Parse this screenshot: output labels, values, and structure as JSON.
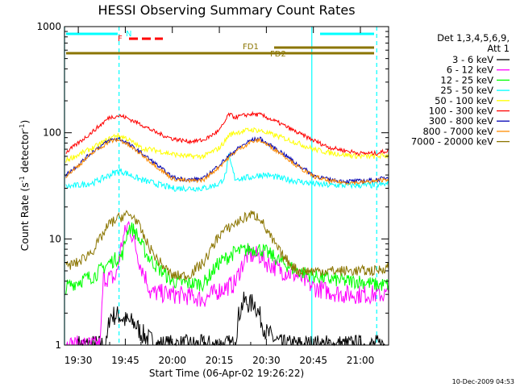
{
  "chart_data": {
    "type": "line",
    "title": "HESSI Observing Summary Count Rates",
    "xlabel": "Start Time (06-Apr-02 19:26:22)",
    "ylabel": "Count Rate (s",
    "ylabel_sup1": "-1",
    "ylabel_mid": " detector",
    "ylabel_sup2": "-1",
    "ylabel_end": ")",
    "yscale": "log",
    "ylim": [
      1,
      1000
    ],
    "xlim": [
      -4.4,
      99
    ],
    "x_ticks": [
      0,
      15,
      30,
      45,
      60,
      75,
      90
    ],
    "x_tick_labels": [
      "19:30",
      "19:45",
      "20:00",
      "20:15",
      "20:30",
      "20:45",
      "21:00"
    ],
    "y_ticks": [
      1,
      10,
      100,
      1000
    ],
    "y_tick_labels": [
      "1",
      "10",
      "100",
      "1000"
    ],
    "legend_header": [
      "Det 1,3,4,5,6,9,",
      "Att 1"
    ],
    "legend_placement": "right",
    "footer_date": "10-Dec-2009 04:53",
    "flag_labels": [
      {
        "text": "N",
        "color": "#00ffff"
      },
      {
        "text": "F",
        "color": "#ff0000"
      },
      {
        "text": "FD1",
        "color": "#8b7500"
      },
      {
        "text": "FD2",
        "color": "#8b7500"
      }
    ],
    "vertical_markers": [
      {
        "x": -4.4,
        "style": "solid",
        "color": "#00ffff"
      },
      {
        "x": 13.0,
        "style": "dashed",
        "color": "#00ffff"
      },
      {
        "x": 74.5,
        "style": "solid",
        "color": "#00ffff"
      },
      {
        "x": 95.2,
        "style": "dashed",
        "color": "#00ffff"
      }
    ],
    "series": [
      {
        "name": "3 - 6 keV",
        "color": "#000000",
        "x": [
          0,
          9,
          10,
          13,
          15,
          18,
          20,
          25,
          30,
          35,
          40,
          45,
          48,
          50,
          51,
          52,
          53,
          55,
          56,
          60,
          65,
          70,
          75,
          80,
          90,
          99
        ],
        "values": [
          1,
          1,
          1.9,
          1.9,
          1.7,
          1.6,
          1.3,
          1,
          1,
          1,
          1,
          1,
          1,
          1,
          1.8,
          2.3,
          2.6,
          2.4,
          2.6,
          1.3,
          1,
          1,
          1,
          1,
          1,
          1
        ]
      },
      {
        "name": "6 - 12 keV",
        "color": "#ff00ff",
        "x": [
          -4,
          0,
          7,
          8,
          12,
          14,
          16,
          18,
          20,
          22,
          23,
          25,
          30,
          35,
          40,
          45,
          50,
          52,
          54,
          56,
          58,
          60,
          65,
          70,
          75,
          80,
          85,
          90,
          99
        ],
        "values": [
          1,
          1,
          1,
          4.3,
          4.3,
          9.5,
          14,
          9,
          5.5,
          4,
          3.1,
          3.1,
          3,
          2.9,
          2.7,
          3.3,
          3.8,
          5.5,
          7,
          7,
          7,
          6,
          5,
          4.5,
          3.5,
          3.2,
          3,
          3,
          3
        ]
      },
      {
        "name": "12 - 25 keV",
        "color": "#00ff00",
        "x": [
          -4,
          0,
          5,
          10,
          14,
          16,
          18,
          20,
          22,
          25,
          30,
          35,
          40,
          45,
          50,
          55,
          58,
          60,
          65,
          70,
          75,
          80,
          85,
          90,
          95,
          99
        ],
        "values": [
          3.5,
          4,
          4.5,
          6,
          7,
          13,
          12,
          9,
          7,
          5.5,
          4,
          3.8,
          3.8,
          6,
          7.5,
          8,
          8,
          7.5,
          6,
          5,
          4.5,
          4.2,
          4,
          4,
          3.7,
          3.7
        ]
      },
      {
        "name": "25 - 50 keV",
        "color": "#00ffff",
        "x": [
          -4,
          0,
          5,
          10,
          13,
          15,
          20,
          25,
          30,
          35,
          40,
          45,
          47,
          48,
          50,
          55,
          58,
          60,
          65,
          70,
          75,
          80,
          85,
          90,
          95,
          99
        ],
        "values": [
          31,
          32,
          34,
          40,
          44,
          42,
          36,
          33,
          30,
          30,
          30,
          33,
          40,
          60,
          37,
          38,
          40,
          40,
          37,
          35,
          33,
          32,
          32,
          32,
          32,
          33
        ]
      },
      {
        "name": "50 - 100 keV",
        "color": "#ffff00",
        "x": [
          -4,
          0,
          5,
          10,
          12,
          15,
          20,
          25,
          30,
          35,
          40,
          45,
          47,
          48,
          50,
          55,
          58,
          60,
          65,
          70,
          75,
          80,
          85,
          90,
          95,
          99
        ],
        "values": [
          55,
          62,
          73,
          88,
          95,
          90,
          72,
          68,
          63,
          60,
          60,
          72,
          85,
          95,
          100,
          107,
          105,
          100,
          90,
          80,
          70,
          65,
          62,
          60,
          60,
          61
        ]
      },
      {
        "name": "100 - 300 keV",
        "color": "#ff0000",
        "x": [
          -4,
          0,
          5,
          10,
          13,
          15,
          20,
          25,
          30,
          35,
          40,
          45,
          47,
          48,
          50,
          55,
          58,
          60,
          65,
          70,
          75,
          80,
          85,
          90,
          95,
          99
        ],
        "values": [
          65,
          80,
          105,
          140,
          145,
          140,
          120,
          100,
          88,
          83,
          85,
          105,
          130,
          150,
          140,
          150,
          148,
          140,
          120,
          100,
          85,
          73,
          68,
          64,
          64,
          68
        ]
      },
      {
        "name": "300 - 800 keV",
        "color": "#0000b4",
        "x": [
          -4,
          0,
          5,
          10,
          13,
          15,
          20,
          25,
          30,
          35,
          40,
          45,
          50,
          55,
          58,
          60,
          65,
          70,
          75,
          80,
          85,
          90,
          95,
          99
        ],
        "values": [
          40,
          50,
          68,
          85,
          88,
          82,
          65,
          50,
          38,
          36,
          37,
          50,
          68,
          85,
          88,
          80,
          65,
          50,
          40,
          36,
          35,
          35,
          36,
          38
        ]
      },
      {
        "name": "800 - 7000 keV",
        "color": "#ff8c00",
        "x": [
          -4,
          0,
          5,
          10,
          13,
          15,
          20,
          25,
          30,
          35,
          40,
          45,
          50,
          55,
          58,
          60,
          65,
          70,
          75,
          80,
          85,
          90,
          95,
          99
        ],
        "values": [
          39,
          49,
          66,
          83,
          86,
          80,
          63,
          48,
          37,
          35,
          36,
          48,
          66,
          82,
          85,
          78,
          63,
          48,
          39,
          35,
          34,
          34,
          35,
          37
        ]
      },
      {
        "name": "7000 - 20000 keV",
        "color": "#8b7500",
        "x": [
          -4,
          0,
          5,
          10,
          15,
          18,
          20,
          22,
          25,
          30,
          35,
          40,
          45,
          50,
          55,
          58,
          60,
          65,
          70,
          75,
          80,
          85,
          90,
          95,
          99
        ],
        "values": [
          5.5,
          6,
          8,
          14,
          17,
          16,
          12,
          9,
          6.5,
          4.5,
          4.5,
          6,
          11,
          14,
          17,
          16,
          12,
          7,
          5,
          5,
          5,
          5,
          5,
          5,
          5.5
        ]
      }
    ]
  }
}
